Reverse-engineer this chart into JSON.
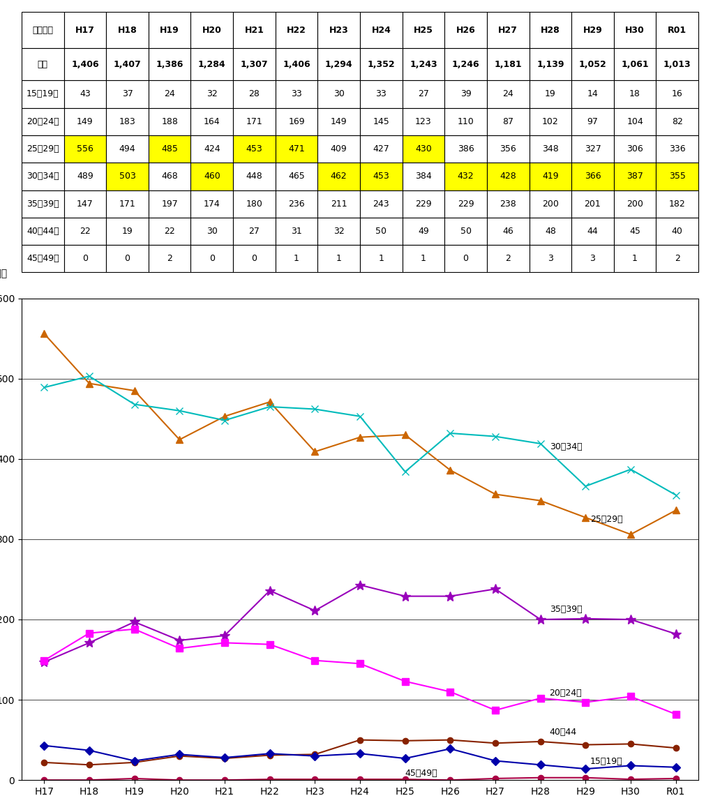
{
  "years": [
    "H17",
    "H18",
    "H19",
    "H20",
    "H21",
    "H22",
    "H23",
    "H24",
    "H25",
    "H26",
    "H27",
    "H28",
    "H29",
    "H30",
    "R01"
  ],
  "table_header": [
    "年齢階級",
    "H17",
    "H18",
    "H19",
    "H20",
    "H21",
    "H22",
    "H23",
    "H24",
    "H25",
    "H26",
    "H27",
    "H28",
    "H29",
    "H30",
    "R01"
  ],
  "table_rows": [
    [
      "合計",
      "1,406",
      "1,407",
      "1,386",
      "1,284",
      "1,307",
      "1,406",
      "1,294",
      "1,352",
      "1,243",
      "1,246",
      "1,181",
      "1,139",
      "1,052",
      "1,061",
      "1,013"
    ],
    [
      "15〜19歳",
      "43",
      "37",
      "24",
      "32",
      "28",
      "33",
      "30",
      "33",
      "27",
      "39",
      "24",
      "19",
      "14",
      "18",
      "16"
    ],
    [
      "20〜24歳",
      "149",
      "183",
      "188",
      "164",
      "171",
      "169",
      "149",
      "145",
      "123",
      "110",
      "87",
      "102",
      "97",
      "104",
      "82"
    ],
    [
      "25〜29歳",
      "556",
      "494",
      "485",
      "424",
      "453",
      "471",
      "409",
      "427",
      "430",
      "386",
      "356",
      "348",
      "327",
      "306",
      "336"
    ],
    [
      "30〜34歳",
      "489",
      "503",
      "468",
      "460",
      "448",
      "465",
      "462",
      "453",
      "384",
      "432",
      "428",
      "419",
      "366",
      "387",
      "355"
    ],
    [
      "35〜39歳",
      "147",
      "171",
      "197",
      "174",
      "180",
      "236",
      "211",
      "243",
      "229",
      "229",
      "238",
      "200",
      "201",
      "200",
      "182"
    ],
    [
      "40〜44歳",
      "22",
      "19",
      "22",
      "30",
      "27",
      "31",
      "32",
      "50",
      "49",
      "50",
      "46",
      "48",
      "44",
      "45",
      "40"
    ],
    [
      "45〜49歳",
      "0",
      "0",
      "2",
      "0",
      "0",
      "1",
      "1",
      "1",
      "1",
      "0",
      "2",
      "3",
      "3",
      "1",
      "2"
    ]
  ],
  "highlight_25_29": [
    1,
    3,
    5,
    6,
    9
  ],
  "highlight_30_34": [
    2,
    4,
    7,
    8,
    10,
    11,
    12,
    13,
    14,
    15
  ],
  "series": {
    "25〜29歳": [
      556,
      494,
      485,
      424,
      453,
      471,
      409,
      427,
      430,
      386,
      356,
      348,
      327,
      306,
      336
    ],
    "30〜34歳": [
      489,
      503,
      468,
      460,
      448,
      465,
      462,
      453,
      384,
      432,
      428,
      419,
      366,
      387,
      355
    ],
    "35〜39歳": [
      147,
      171,
      197,
      174,
      180,
      236,
      211,
      243,
      229,
      229,
      238,
      200,
      201,
      200,
      182
    ],
    "20〜24歳": [
      149,
      183,
      188,
      164,
      171,
      169,
      149,
      145,
      123,
      110,
      87,
      102,
      97,
      104,
      82
    ],
    "40〜44歳": [
      22,
      19,
      22,
      30,
      27,
      31,
      32,
      50,
      49,
      50,
      46,
      48,
      44,
      45,
      40
    ],
    "15〜19歳": [
      43,
      37,
      24,
      32,
      28,
      33,
      30,
      33,
      27,
      39,
      24,
      19,
      14,
      18,
      16
    ],
    "45〜49歳": [
      0,
      0,
      2,
      0,
      0,
      1,
      1,
      1,
      1,
      0,
      2,
      3,
      3,
      1,
      2
    ]
  },
  "colors": {
    "25〜29歳": "#CC6600",
    "30〜34歳": "#00BBBB",
    "35〜39歳": "#9900BB",
    "20〜24歳": "#FF00FF",
    "40〜44歳": "#882200",
    "15〜19歳": "#0000AA",
    "45〜49歳": "#AA0044"
  },
  "markers": {
    "25〜29歳": "^",
    "30〜34歳": "x",
    "35〜39歳": "*",
    "20〜24歳": "s",
    "40〜44歳": "o",
    "15〜19歳": "D",
    "45〜49歳": "o"
  },
  "ylim": [
    0,
    600
  ],
  "yticks": [
    0,
    100,
    200,
    300,
    400,
    500,
    600
  ],
  "ylabel": "（人）",
  "highlight_color": "#FFFF00",
  "background_color": "#FFFFFF"
}
